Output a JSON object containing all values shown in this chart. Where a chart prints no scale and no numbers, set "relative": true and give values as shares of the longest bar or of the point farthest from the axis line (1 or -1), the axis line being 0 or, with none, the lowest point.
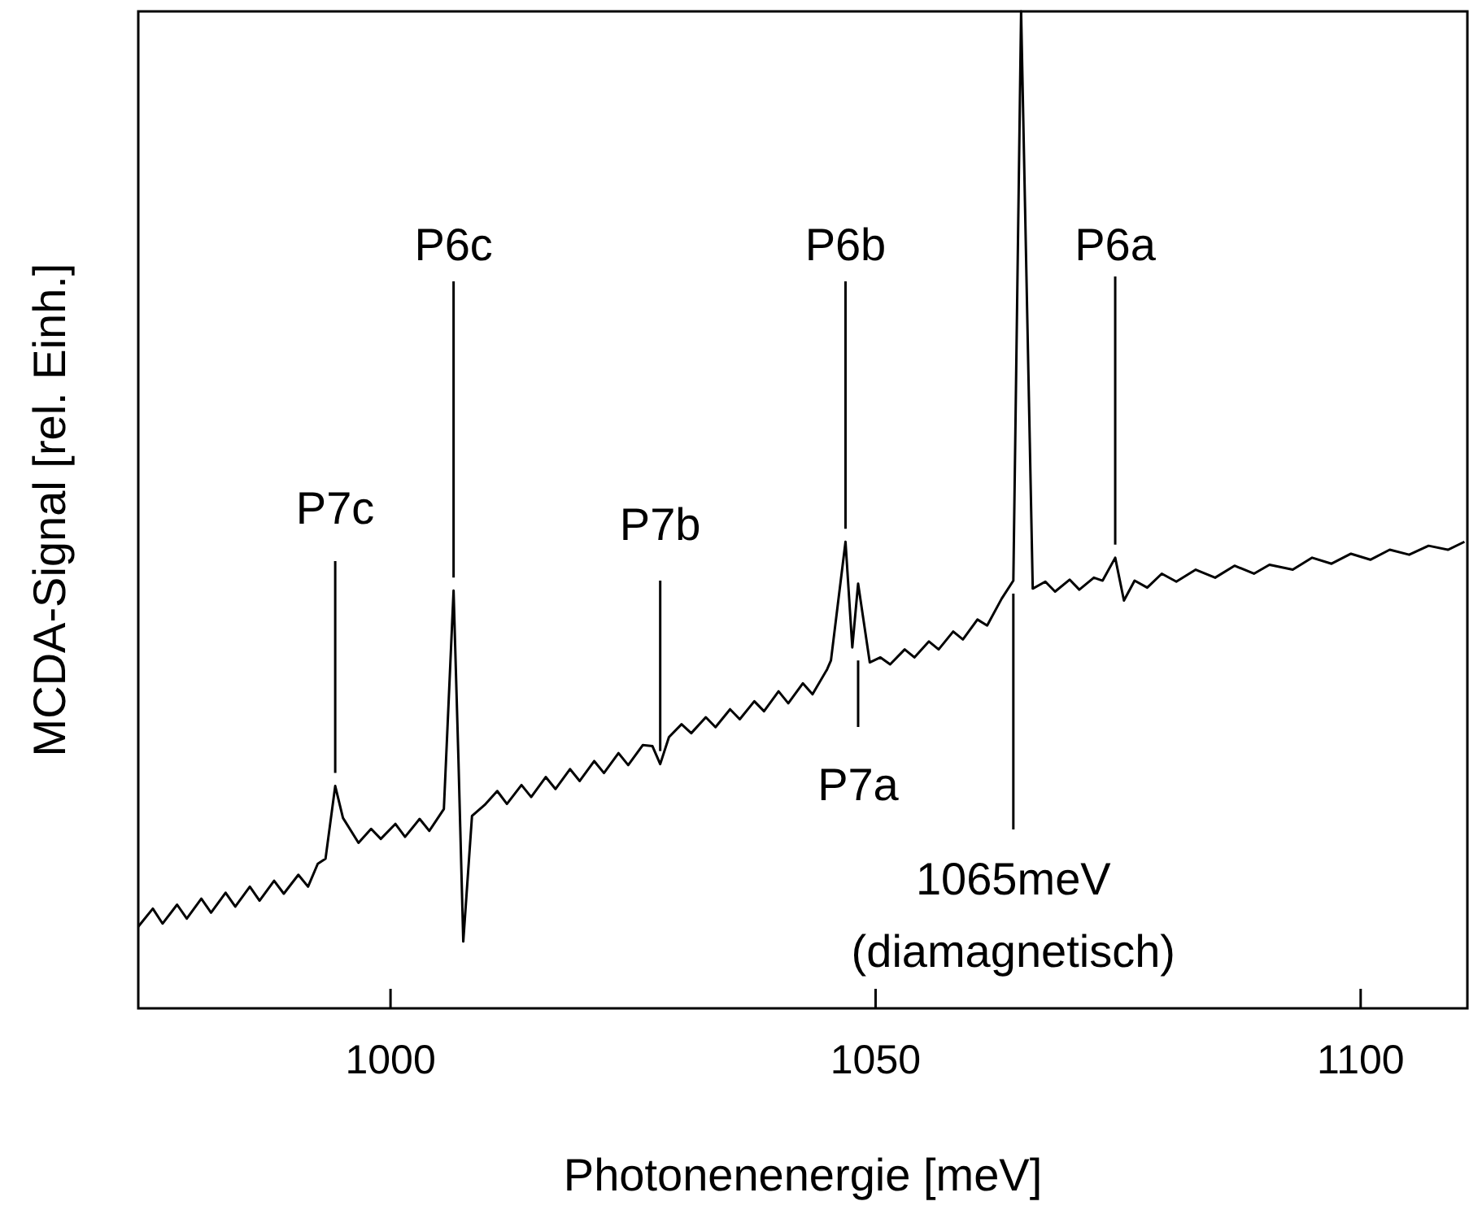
{
  "chart_data": {
    "type": "line",
    "relative": true,
    "xlabel": "Photonenenergie [meV]",
    "ylabel": "MCDA-Signal [rel. Einh.]",
    "xlim": [
      974,
      1111
    ],
    "xticks": [
      1000,
      1050,
      1100
    ],
    "grid": false,
    "marker": "none",
    "line_style": "solid",
    "series": [
      {
        "color": "#000000",
        "x": [
          974.0,
          975.5,
          976.5,
          978,
          979,
          980.5,
          981.5,
          983,
          984,
          985.5,
          986.5,
          988,
          989,
          990.5,
          991.5,
          992.5,
          993.3,
          994.3,
          995.1,
          996.7,
          998,
          999,
          1000.5,
          1001.5,
          1003,
          1004,
          1005.5,
          1006.5,
          1007.0,
          1007.5,
          1008.4,
          1009.7,
          1011,
          1012,
          1013.5,
          1014.5,
          1016,
          1017,
          1018.5,
          1019.5,
          1021,
          1022,
          1023.5,
          1024.5,
          1026,
          1027,
          1027.8,
          1028.7,
          1030,
          1031,
          1032.5,
          1033.5,
          1035,
          1036,
          1037.5,
          1038.5,
          1040,
          1041,
          1042.5,
          1043.5,
          1045,
          1045.4,
          1046.9,
          1047.6,
          1048.2,
          1049.4,
          1050.5,
          1051.5,
          1053,
          1054,
          1055.5,
          1056.5,
          1058,
          1059,
          1060.5,
          1061.5,
          1063,
          1064.2,
          1065,
          1066.2,
          1067.5,
          1068.5,
          1070,
          1071,
          1072.5,
          1073.4,
          1074.7,
          1075.6,
          1076.7,
          1078,
          1079.5,
          1081,
          1083,
          1085,
          1087,
          1089,
          1090.6,
          1093,
          1095,
          1097,
          1099,
          1101,
          1103,
          1105,
          1107,
          1109,
          1110.7
        ],
        "values": [
          0.082,
          0.1,
          0.085,
          0.104,
          0.09,
          0.11,
          0.096,
          0.116,
          0.102,
          0.122,
          0.108,
          0.128,
          0.115,
          0.134,
          0.122,
          0.145,
          0.15,
          0.223,
          0.191,
          0.166,
          0.18,
          0.17,
          0.185,
          0.172,
          0.19,
          0.178,
          0.2,
          0.419,
          0.25,
          0.067,
          0.193,
          0.204,
          0.218,
          0.205,
          0.224,
          0.212,
          0.232,
          0.22,
          0.24,
          0.228,
          0.248,
          0.236,
          0.256,
          0.244,
          0.264,
          0.263,
          0.245,
          0.272,
          0.285,
          0.276,
          0.292,
          0.282,
          0.3,
          0.29,
          0.308,
          0.298,
          0.318,
          0.306,
          0.326,
          0.315,
          0.34,
          0.349,
          0.468,
          0.362,
          0.426,
          0.347,
          0.352,
          0.345,
          0.36,
          0.352,
          0.368,
          0.36,
          0.378,
          0.37,
          0.39,
          0.384,
          0.411,
          0.429,
          1.0,
          0.421,
          0.428,
          0.418,
          0.43,
          0.42,
          0.432,
          0.429,
          0.452,
          0.409,
          0.429,
          0.422,
          0.436,
          0.428,
          0.44,
          0.432,
          0.444,
          0.436,
          0.445,
          0.44,
          0.452,
          0.446,
          0.456,
          0.45,
          0.46,
          0.455,
          0.464,
          0.46,
          0.468
        ]
      }
    ],
    "annotations": [
      {
        "text": "P7c",
        "x": 994.3,
        "y": 0.223
      },
      {
        "text": "P6c",
        "x": 1006.5,
        "y": 0.419
      },
      {
        "text": "P7b",
        "x": 1027.8,
        "y": 0.245
      },
      {
        "text": "P6b",
        "x": 1046.9,
        "y": 0.468
      },
      {
        "text": "P7a",
        "x": 1048.2,
        "y": 0.362
      },
      {
        "text": "1065meV\n(diamagnetisch)",
        "x": 1064.2,
        "y": 0.429
      },
      {
        "text": "P6a",
        "x": 1074.7,
        "y": 0.452
      }
    ]
  }
}
